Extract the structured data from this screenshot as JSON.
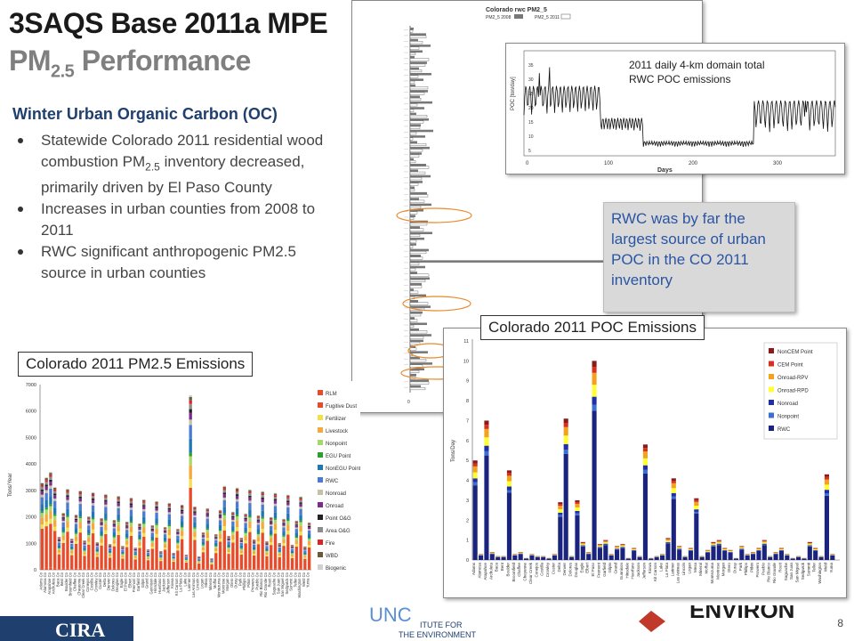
{
  "title": {
    "line1": "3SAQS Base 2011a MPE",
    "line2_main": "PM",
    "line2_sub": "2.5",
    "line2_rest": " Performance"
  },
  "section_heading": "Winter Urban Organic Carbon (OC)",
  "bullets": [
    {
      "pre": "Statewide Colorado 2011 residential wood combustion PM",
      "sub": "2.5",
      "post": " inventory decreased, primarily driven by El Paso County"
    },
    {
      "pre": "Increases in urban counties from 2008 to 2011",
      "sub": "",
      "post": ""
    },
    {
      "pre": "RWC significant anthropogenic PM2.5 source in urban counties",
      "sub": "",
      "post": ""
    }
  ],
  "captions": {
    "pm25": "Colorado 2011 PM2.5 Emissions",
    "poc": "Colorado 2011 POC Emissions",
    "daily": "2011 daily 4-km domain total RWC POC emissions"
  },
  "callout": "RWC was by far the largest source of urban POC in the CO 2011 inventory",
  "page_number": "8",
  "logos": {
    "cira": "CIRA",
    "unc": "UNC",
    "unc_sub1": "ITUTE FOR",
    "unc_sub2": "THE ENVIRONMENT",
    "environ": "ENVIRON"
  },
  "colors": {
    "title_dark": "#1a1a1a",
    "title_grey": "#7f7f7f",
    "heading_blue": "#1f3f6e",
    "callout_text": "#2a55a4",
    "nonroad": "#1f2fa8",
    "nonpoint": "#3b6fd1",
    "onroad_rpd": "#ffff33",
    "onroad_rpv": "#f2a21c",
    "cem_point": "#d7301f",
    "noncem_point": "#8b1a1a"
  },
  "chart_data": [
    {
      "type": "bar",
      "title": "Colorado rwc PM2_5",
      "series": [
        {
          "name": "PM2_5 2008"
        },
        {
          "name": "PM2_5 2011"
        }
      ],
      "ylim": [
        0,
        100
      ]
    },
    {
      "type": "line",
      "xlabel": "Days",
      "ylabel": "POC [ton/day]",
      "x_ticks": [
        "0",
        "100",
        "200",
        "300"
      ],
      "y_ticks": [
        "5",
        "10",
        "15",
        "20",
        "25",
        "30",
        "35"
      ]
    },
    {
      "type": "bar",
      "ylabel": "Tons/Year",
      "y_ticks": [
        "0",
        "1000",
        "2000",
        "3000",
        "4000",
        "5000",
        "6000",
        "7000"
      ],
      "legend": [
        "RLM",
        "Fugitive Dust",
        "Fertilizer",
        "Livestock",
        "Nonpoint",
        "EGU Point",
        "NonEGU Point",
        "RWC",
        "Nonroad",
        "Onroad",
        "Point O&G",
        "Area O&G",
        "Fire",
        "WBD",
        "Biogenic"
      ],
      "legend_colors": [
        "#e94b2a",
        "#e94b2a",
        "#f0e04a",
        "#f6a83a",
        "#a6d96a",
        "#2ca02c",
        "#1f77b4",
        "#4a7bd1",
        "#c7c0a8",
        "#7b2d8b",
        "#222222",
        "#8c8c8c",
        "#d62728",
        "#6b5a3a",
        "#d0d0d0"
      ],
      "legend_position": "right",
      "categories": [
        "Adams Co",
        "Alamosa Co",
        "Arapahoe Co",
        "Archuleta Co",
        "Baca Co",
        "Bent Co",
        "Boulder Co",
        "Broomfield Co",
        "Chaffee Co",
        "Cheyenne Co",
        "Clear Creek Co",
        "Conejos Co",
        "Costilla Co",
        "Crowley Co",
        "Custer Co",
        "Delta Co",
        "Denver Co",
        "Dolores Co",
        "Douglas Co",
        "Eagle Co",
        "El Paso Co",
        "Elbert Co",
        "Fremont Co",
        "Garfield Co",
        "Gilpin Co",
        "Grand Co",
        "Gunnison Co",
        "Hinsdale Co",
        "Huerfano Co",
        "Jackson Co",
        "Jefferson Co",
        "Kiowa Co",
        "Kit Carson Co",
        "La Plata Co",
        "Lake Co",
        "Larimer Co",
        "Las Animas Co",
        "Lincoln Co",
        "Logan Co",
        "Mesa Co",
        "Mineral Co",
        "Moffat Co",
        "Montezuma Co",
        "Montrose Co",
        "Morgan Co",
        "Otero Co",
        "Ouray Co",
        "Park Co",
        "Phillips Co",
        "Pitkin Co",
        "Prowers Co",
        "Pueblo Co",
        "Rio Blanco Co",
        "Rio Grande Co",
        "Routt Co",
        "Saguache Co",
        "San Juan Co",
        "San Miguel Co",
        "Sedgwick Co",
        "Summit Co",
        "Teller Co",
        "Washington Co",
        "Weld Co",
        "Yuma Co"
      ]
    },
    {
      "type": "bar",
      "ylabel": "Tons/Day",
      "ylim": [
        0,
        11
      ],
      "y_ticks": [
        "0",
        "1",
        "2",
        "3",
        "4",
        "5",
        "6",
        "7",
        "8",
        "9",
        "10",
        "11"
      ],
      "legend_position": "top-right",
      "categories": [
        "Adams",
        "Alamosa",
        "Arapahoe",
        "Archuleta",
        "Baca",
        "Bent",
        "Boulder",
        "Broomfield",
        "Chaffee",
        "Cheyenne",
        "Clear Creek",
        "Conejos",
        "Costilla",
        "Crowley",
        "Custer",
        "Delta",
        "Denver",
        "Dolores",
        "Douglas",
        "Eagle",
        "Elbert",
        "El Paso",
        "Fremont",
        "Garfield",
        "Gilpin",
        "Grand",
        "Gunnison",
        "Hinsdale",
        "Huerfano",
        "Jackson",
        "Jefferson",
        "Kiowa",
        "Kit Carson",
        "Lake",
        "La Plata",
        "Larimer",
        "Las Animas",
        "Lincoln",
        "Logan",
        "Mesa",
        "Mineral",
        "Moffat",
        "Montezuma",
        "Montrose",
        "Morgan",
        "Otero",
        "Ouray",
        "Park",
        "Phillips",
        "Pitkin",
        "Prowers",
        "Pueblo",
        "Rio Blanco",
        "Rio Grande",
        "Routt",
        "Saguache",
        "San Juan",
        "San Miguel",
        "Sedgwick",
        "Summit",
        "Teller",
        "Washington",
        "Weld",
        "Yuma"
      ],
      "series": [
        {
          "name": "NonCEM Point",
          "color": "#8b1a1a"
        },
        {
          "name": "CEM Point",
          "color": "#d7301f"
        },
        {
          "name": "Onroad-RPV",
          "color": "#f2a21c"
        },
        {
          "name": "Onroad-RPD",
          "color": "#ffff33"
        },
        {
          "name": "Nonroad",
          "color": "#1f2fa8"
        },
        {
          "name": "Nonpoint",
          "color": "#3b6fd1"
        },
        {
          "name": "RWC",
          "color": "#1a237e"
        }
      ],
      "totals": [
        5.0,
        0.3,
        7.0,
        0.4,
        0.2,
        0.2,
        4.5,
        0.3,
        0.4,
        0.1,
        0.3,
        0.2,
        0.2,
        0.1,
        0.3,
        2.9,
        7.1,
        0.2,
        3.0,
        0.9,
        0.4,
        10.0,
        0.8,
        1.0,
        0.3,
        0.7,
        0.8,
        0.1,
        0.6,
        0.2,
        5.8,
        0.1,
        0.2,
        0.3,
        1.1,
        4.1,
        0.7,
        0.2,
        0.6,
        3.1,
        0.2,
        0.5,
        0.9,
        1.0,
        0.6,
        0.5,
        0.1,
        0.7,
        0.3,
        0.4,
        0.6,
        1.0,
        0.2,
        0.4,
        0.6,
        0.3,
        0.1,
        0.2,
        0.1,
        0.9,
        0.6,
        0.2,
        4.3,
        0.3
      ]
    }
  ]
}
